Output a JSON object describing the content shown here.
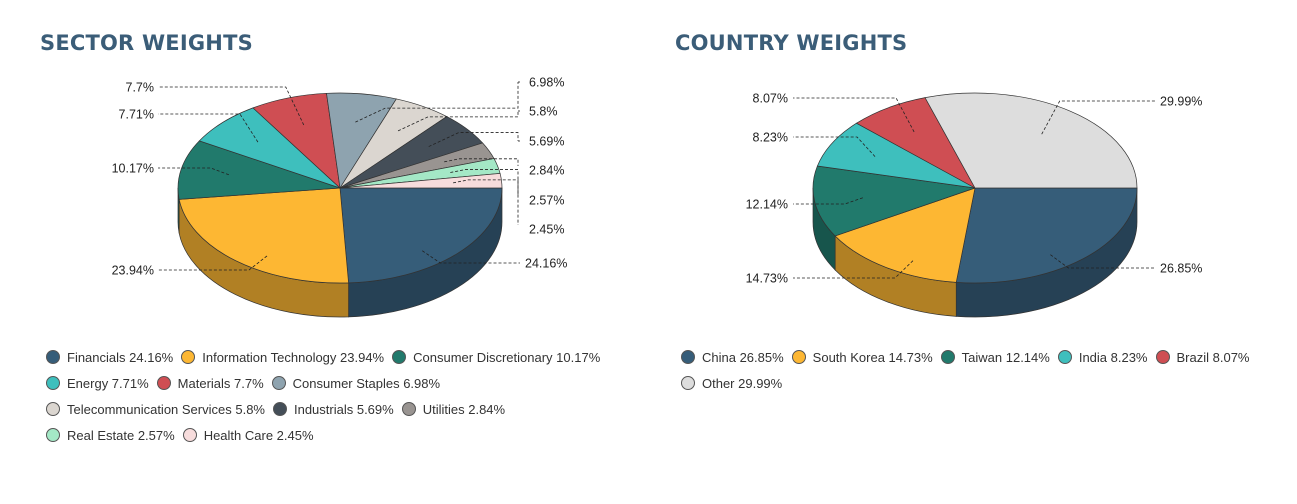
{
  "chart_data": [
    {
      "type": "pie",
      "title": "SECTOR WEIGHTS",
      "categories": [
        "Financials",
        "Information Technology",
        "Consumer Discretionary",
        "Energy",
        "Materials",
        "Consumer Staples",
        "Telecommunication Services",
        "Industrials",
        "Utilities",
        "Real Estate",
        "Health Care"
      ],
      "values": [
        24.16,
        23.94,
        10.17,
        7.71,
        7.7,
        6.98,
        5.8,
        5.69,
        2.84,
        2.57,
        2.45
      ],
      "value_labels": [
        "24.16%",
        "23.94%",
        "10.17%",
        "7.71%",
        "7.7%",
        "6.98%",
        "5.8%",
        "5.69%",
        "2.84%",
        "2.57%",
        "2.45%"
      ],
      "legend_labels": [
        "Financials 24.16%",
        "Information Technology 23.94%",
        "Consumer Discretionary 10.17%",
        "Energy 7.71%",
        "Materials 7.7%",
        "Consumer Staples 6.98%",
        "Telecommunication Services 5.8%",
        "Industrials 5.69%",
        "Utilities 2.84%",
        "Real Estate 2.57%",
        "Health Care 2.45%"
      ],
      "colors": [
        "#365d79",
        "#fdb733",
        "#217a6c",
        "#3ebfbd",
        "#cf4e53",
        "#8ea3af",
        "#dbd6d0",
        "#444e58",
        "#999491",
        "#a4e8c6",
        "#f7dcdc"
      ],
      "legend_position": "bottom"
    },
    {
      "type": "pie",
      "title": "COUNTRY WEIGHTS",
      "categories": [
        "China",
        "South Korea",
        "Taiwan",
        "India",
        "Brazil",
        "Other"
      ],
      "values": [
        26.85,
        14.73,
        12.14,
        8.23,
        8.07,
        29.99
      ],
      "value_labels": [
        "26.85%",
        "14.73%",
        "12.14%",
        "8.23%",
        "8.07%",
        "29.99%"
      ],
      "legend_labels": [
        "China 26.85%",
        "South Korea 14.73%",
        "Taiwan 12.14%",
        "India 8.23%",
        "Brazil 8.07%",
        "Other 29.99%"
      ],
      "colors": [
        "#365d79",
        "#fdb733",
        "#217a6c",
        "#3ebfbd",
        "#cf4e53",
        "#dddddd"
      ],
      "legend_position": "bottom"
    }
  ]
}
